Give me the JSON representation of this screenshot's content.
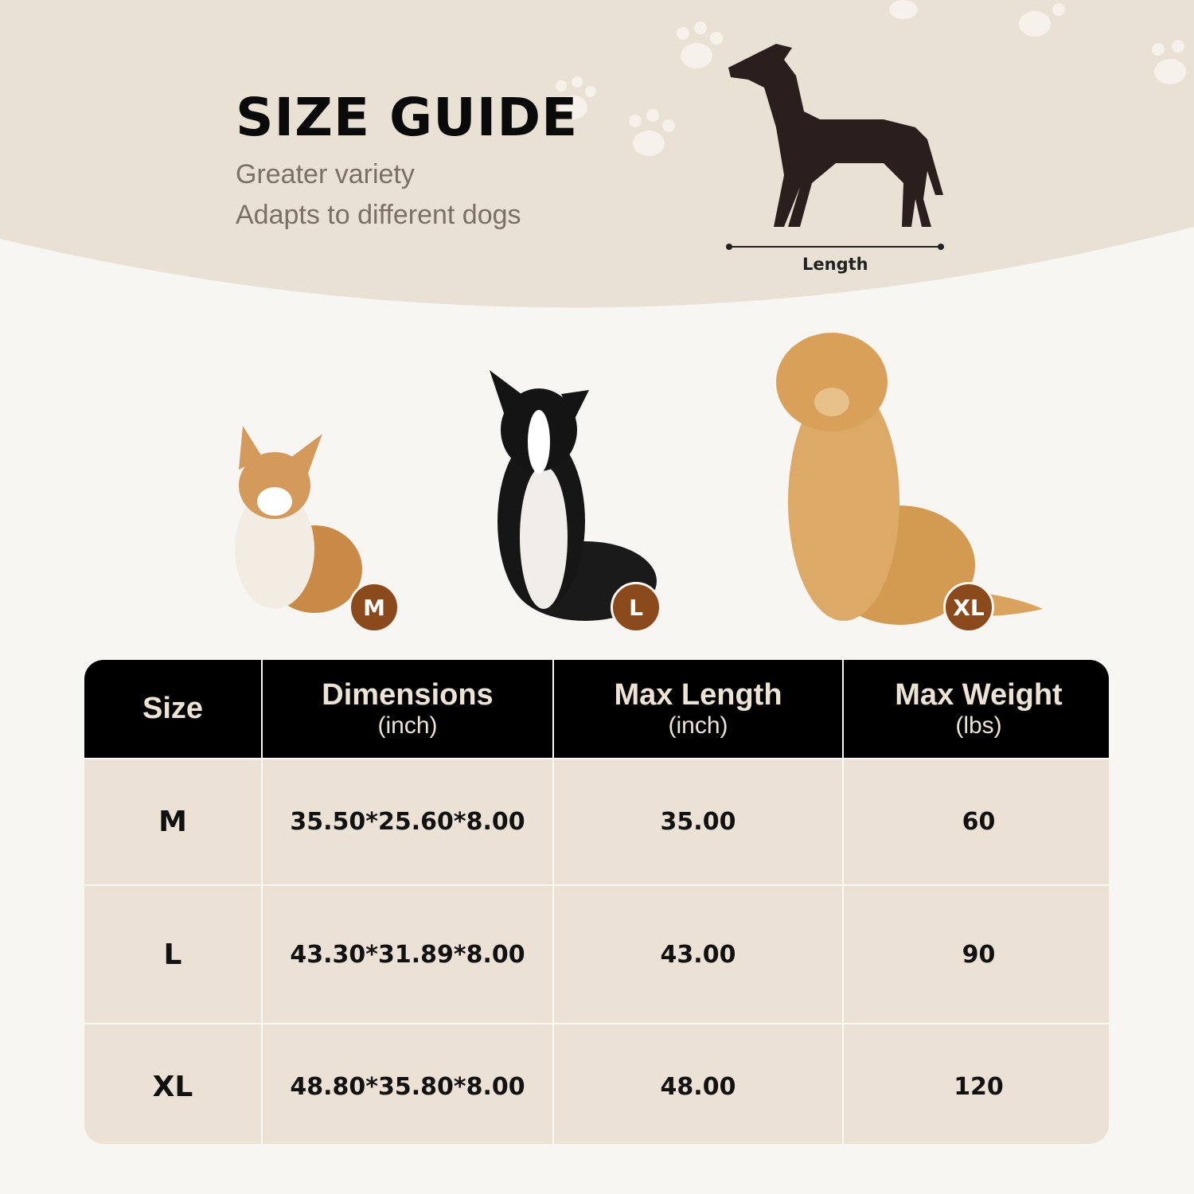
{
  "header": {
    "title": "SIZE GUIDE",
    "subtitle_lines": [
      "Greater variety",
      "Adapts to different dogs"
    ],
    "diagram_label": "Length"
  },
  "dogs": [
    {
      "badge": "M",
      "breed_icon": "corgi"
    },
    {
      "badge": "L",
      "breed_icon": "border-collie"
    },
    {
      "badge": "XL",
      "breed_icon": "golden-retriever"
    }
  ],
  "table": {
    "headers": [
      {
        "main": "Size",
        "unit": ""
      },
      {
        "main": "Dimensions",
        "unit": "(inch)"
      },
      {
        "main": "Max Length",
        "unit": "(inch)"
      },
      {
        "main": "Max Weight",
        "unit": "(lbs)"
      }
    ],
    "rows": [
      [
        "M",
        "35.50*25.60*8.00",
        "35.00",
        "60"
      ],
      [
        "L",
        "43.30*31.89*8.00",
        "43.00",
        "90"
      ],
      [
        "XL",
        "48.80*35.80*8.00",
        "48.00",
        "120"
      ]
    ]
  },
  "colors": {
    "beige": "#e9e1d4",
    "badge": "#8a4a1c",
    "header": "#000000",
    "cell": "#ebe2d5"
  }
}
